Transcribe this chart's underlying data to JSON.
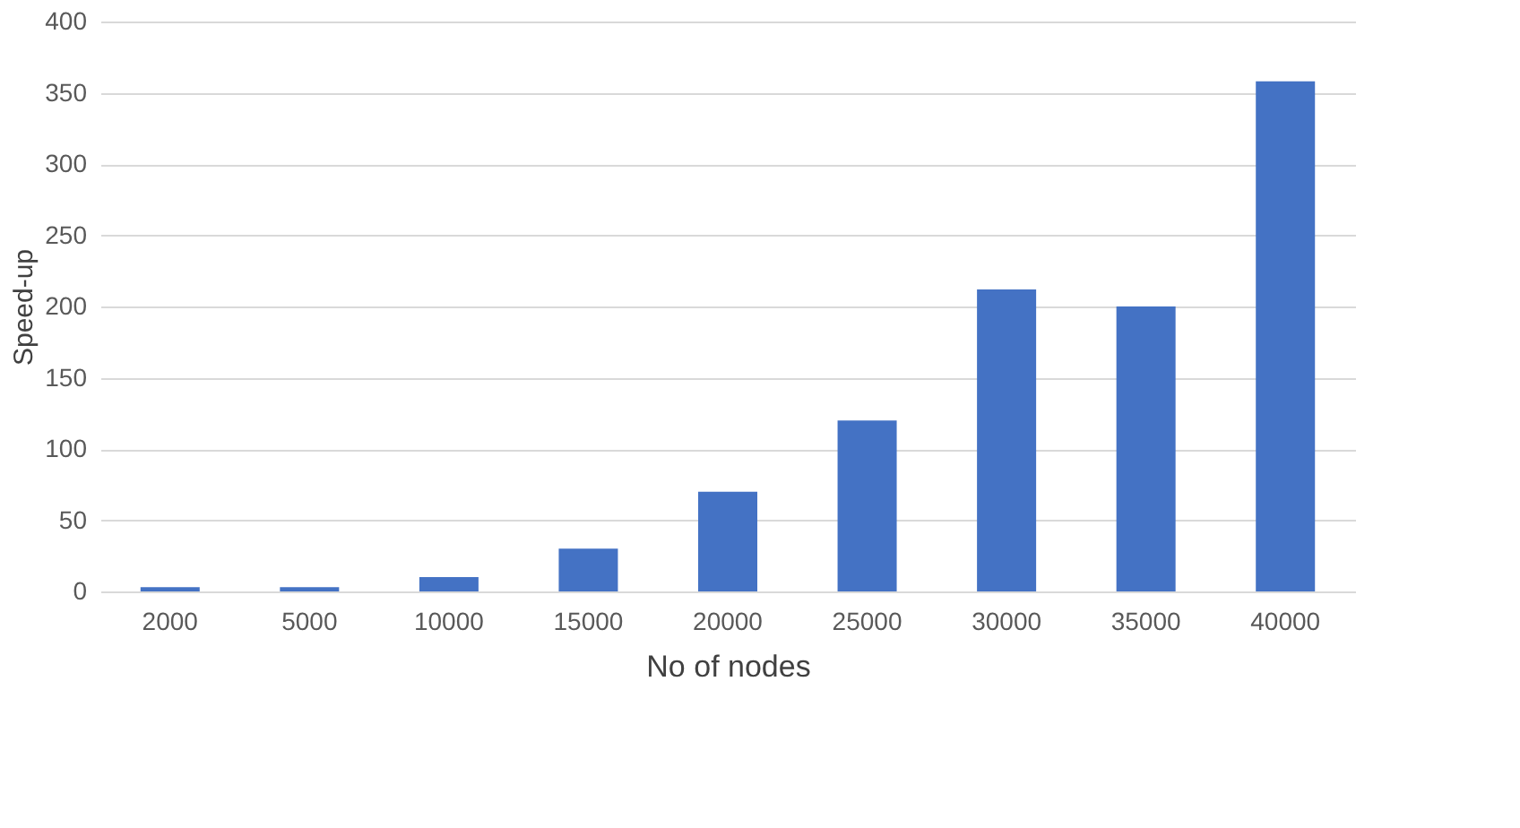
{
  "chart_data": {
    "type": "bar",
    "xlabel": "No of nodes",
    "ylabel": "Speed-up",
    "categories": [
      "2000",
      "5000",
      "10000",
      "15000",
      "20000",
      "25000",
      "30000",
      "35000",
      "40000"
    ],
    "values": [
      3,
      3,
      10,
      30,
      70,
      120,
      212,
      200,
      358
    ],
    "color": "#4472c4",
    "ylim": [
      0,
      400
    ],
    "yticks": [
      0,
      50,
      100,
      150,
      200,
      250,
      300,
      350,
      400
    ],
    "grid": "y"
  }
}
